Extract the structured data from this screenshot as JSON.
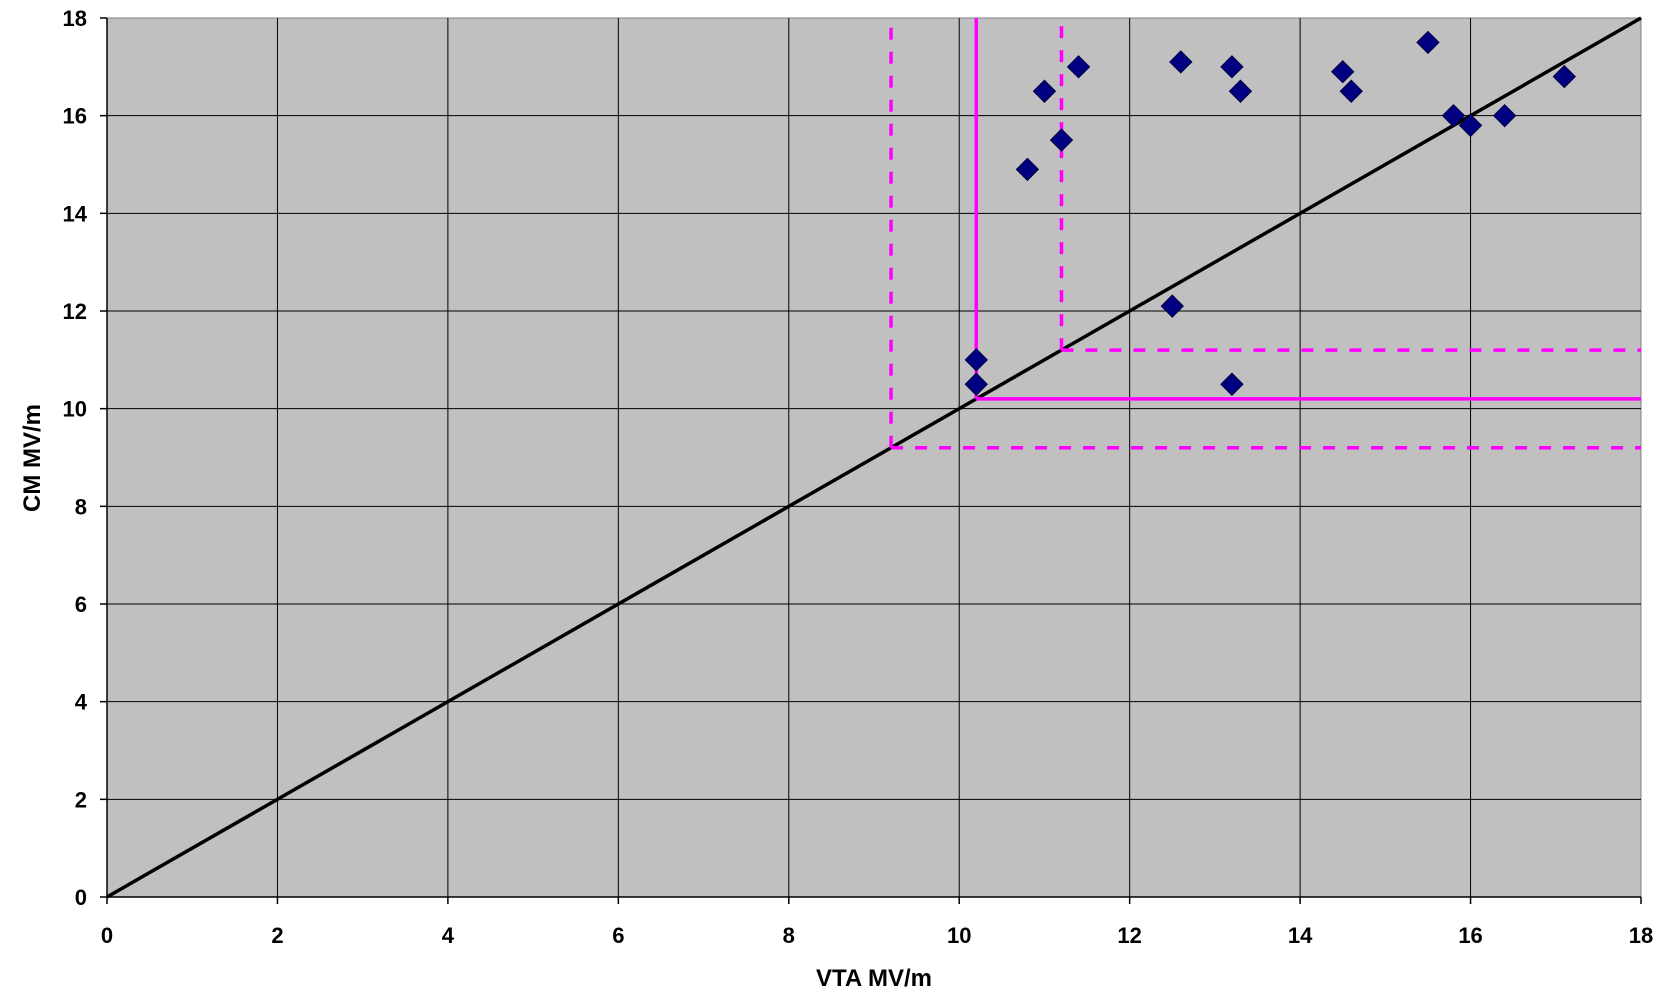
{
  "chart_data": {
    "type": "scatter",
    "title": "",
    "xlabel": "VTA MV/m",
    "ylabel": "CM MV/m",
    "xlim": [
      0,
      18
    ],
    "ylim": [
      0,
      18
    ],
    "x_ticks": [
      "0",
      "2",
      "4",
      "6",
      "8",
      "10",
      "12",
      "14",
      "16",
      "18"
    ],
    "y_ticks": [
      "0",
      "2",
      "4",
      "6",
      "8",
      "10",
      "12",
      "14",
      "16",
      "18"
    ],
    "grid": true,
    "legend": "none",
    "plot_background": "#c0c0c0",
    "marker": "diamond",
    "marker_color": "#000080",
    "points": [
      {
        "x": 10.2,
        "y": 11.0
      },
      {
        "x": 10.2,
        "y": 10.5
      },
      {
        "x": 10.8,
        "y": 14.9
      },
      {
        "x": 11.0,
        "y": 16.5
      },
      {
        "x": 11.2,
        "y": 15.5
      },
      {
        "x": 11.4,
        "y": 17.0
      },
      {
        "x": 12.5,
        "y": 12.1
      },
      {
        "x": 12.6,
        "y": 17.1
      },
      {
        "x": 13.2,
        "y": 17.0
      },
      {
        "x": 13.2,
        "y": 10.5
      },
      {
        "x": 13.3,
        "y": 16.5
      },
      {
        "x": 14.5,
        "y": 16.9
      },
      {
        "x": 14.6,
        "y": 16.5
      },
      {
        "x": 15.5,
        "y": 17.5
      },
      {
        "x": 15.8,
        "y": 16.0
      },
      {
        "x": 16.0,
        "y": 15.8
      },
      {
        "x": 16.4,
        "y": 16.0
      },
      {
        "x": 17.1,
        "y": 16.8
      }
    ],
    "reference_lines": [
      {
        "kind": "diagonal",
        "x": [
          0,
          18
        ],
        "y": [
          0,
          18
        ],
        "color": "#000000",
        "style": "solid"
      },
      {
        "kind": "threshold-vertical",
        "x": [
          10.2,
          10.2
        ],
        "y": [
          10.2,
          18
        ],
        "color": "#ff00ff",
        "style": "solid"
      },
      {
        "kind": "threshold-horizontal",
        "x": [
          10.2,
          18
        ],
        "y": [
          10.2,
          10.2
        ],
        "color": "#ff00ff",
        "style": "solid"
      },
      {
        "kind": "lower-bound-vertical",
        "x": [
          9.2,
          9.2
        ],
        "y": [
          9.2,
          18
        ],
        "color": "#ff00ff",
        "style": "dashed"
      },
      {
        "kind": "lower-bound-horizontal",
        "x": [
          9.2,
          18
        ],
        "y": [
          9.2,
          9.2
        ],
        "color": "#ff00ff",
        "style": "dashed"
      },
      {
        "kind": "upper-bound-vertical",
        "x": [
          11.2,
          11.2
        ],
        "y": [
          11.2,
          18
        ],
        "color": "#ff00ff",
        "style": "dashed"
      },
      {
        "kind": "upper-bound-horizontal",
        "x": [
          11.2,
          18
        ],
        "y": [
          11.2,
          11.2
        ],
        "color": "#ff00ff",
        "style": "dashed"
      }
    ]
  }
}
